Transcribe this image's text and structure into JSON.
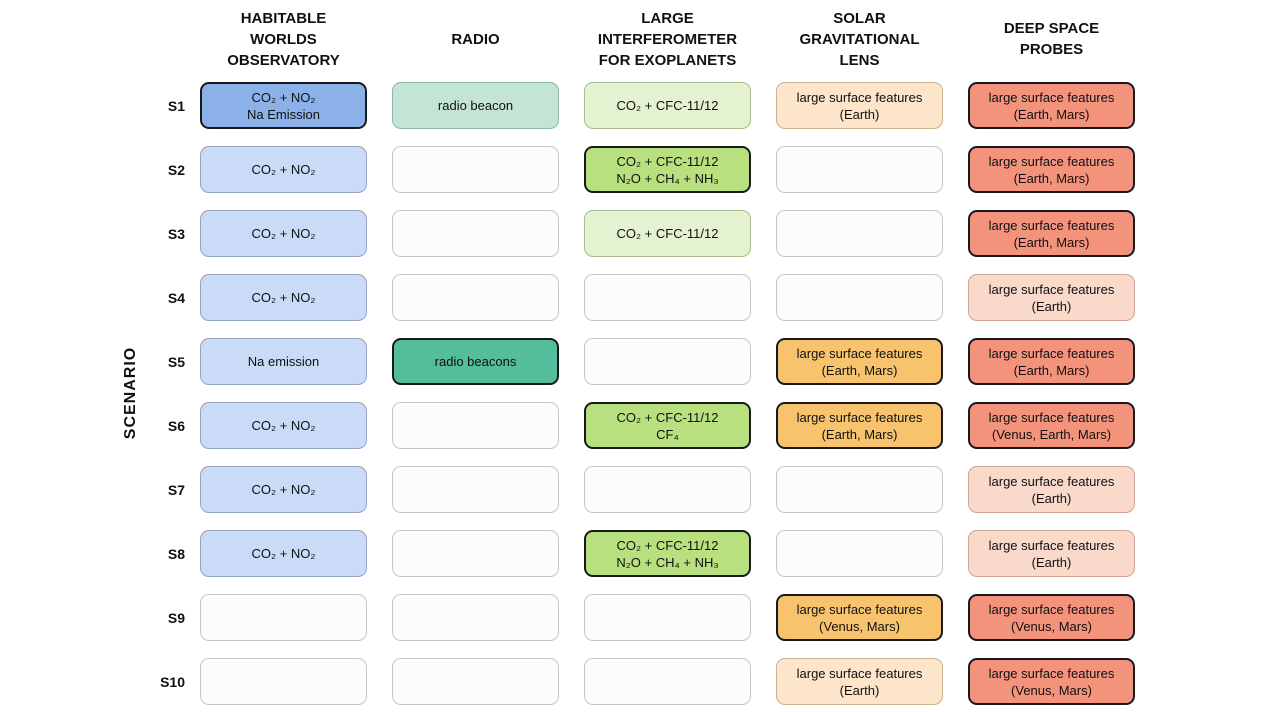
{
  "figure": {
    "axis_label": "SCENARIO",
    "background": "#ffffff",
    "text_color": "#111111"
  },
  "columns": [
    {
      "id": "hwo",
      "label": "HABITABLE WORLDS OBSERVATORY",
      "lines": [
        "HABITABLE",
        "WORLDS",
        "OBSERVATORY"
      ]
    },
    {
      "id": "radio",
      "label": "RADIO",
      "lines": [
        "RADIO"
      ]
    },
    {
      "id": "life",
      "label": "LARGE INTERFEROMETER FOR EXOPLANETS",
      "lines": [
        "LARGE",
        "INTERFEROMETER",
        "FOR EXOPLANETS"
      ]
    },
    {
      "id": "sgl",
      "label": "SOLAR GRAVITATIONAL LENS",
      "lines": [
        "SOLAR",
        "GRAVITATIONAL",
        "LENS"
      ]
    },
    {
      "id": "dsp",
      "label": "DEEP SPACE PROBES",
      "lines": [
        "DEEP SPACE",
        "PROBES"
      ]
    }
  ],
  "cell_styles": {
    "empty": {
      "bg": "#fcfcfc",
      "border": "#c6c6c6",
      "borderWidth": 1
    },
    "blue-strong": {
      "bg": "#8cb1e9",
      "border": "#18181f",
      "borderWidth": 2
    },
    "blue-light": {
      "bg": "#c9dbf7",
      "border": "#93a4c2",
      "borderWidth": 1.5
    },
    "teal-light": {
      "bg": "#c4e4d6",
      "border": "#8cb7a6",
      "borderWidth": 1.5
    },
    "teal-strong": {
      "bg": "#54bd9b",
      "border": "#18181f",
      "borderWidth": 2
    },
    "green-light": {
      "bg": "#e4f2d2",
      "border": "#a7bd8c",
      "borderWidth": 1.5
    },
    "green-strong": {
      "bg": "#b8e07e",
      "border": "#18181f",
      "borderWidth": 2
    },
    "peach-light": {
      "bg": "#fce5cb",
      "border": "#ccb18c",
      "borderWidth": 1.5
    },
    "orange-strong": {
      "bg": "#f8c36d",
      "border": "#18181f",
      "borderWidth": 2
    },
    "pink-light": {
      "bg": "#f9d9ca",
      "border": "#d2a495",
      "borderWidth": 1.5
    },
    "salmon-strong": {
      "bg": "#f4937b",
      "border": "#18181f",
      "borderWidth": 2
    }
  },
  "rows": [
    {
      "label": "S1",
      "cells": [
        {
          "style": "blue-strong",
          "lines": [
            "CO₂ + NO₂",
            "Na Emission"
          ]
        },
        {
          "style": "teal-light",
          "lines": [
            "radio beacon"
          ]
        },
        {
          "style": "green-light",
          "lines": [
            "CO₂ + CFC-11/12"
          ]
        },
        {
          "style": "peach-light",
          "lines": [
            "large surface features",
            "(Earth)"
          ]
        },
        {
          "style": "salmon-strong",
          "lines": [
            "large surface features",
            "(Earth, Mars)"
          ]
        }
      ]
    },
    {
      "label": "S2",
      "cells": [
        {
          "style": "blue-light",
          "lines": [
            "CO₂ + NO₂"
          ]
        },
        {
          "style": "empty",
          "lines": []
        },
        {
          "style": "green-strong",
          "lines": [
            "CO₂ + CFC-11/12",
            "N₂O + CH₄ + NH₃"
          ]
        },
        {
          "style": "empty",
          "lines": []
        },
        {
          "style": "salmon-strong",
          "lines": [
            "large surface features",
            "(Earth, Mars)"
          ]
        }
      ]
    },
    {
      "label": "S3",
      "cells": [
        {
          "style": "blue-light",
          "lines": [
            "CO₂ + NO₂"
          ]
        },
        {
          "style": "empty",
          "lines": []
        },
        {
          "style": "green-light",
          "lines": [
            "CO₂ + CFC-11/12"
          ]
        },
        {
          "style": "empty",
          "lines": []
        },
        {
          "style": "salmon-strong",
          "lines": [
            "large surface features",
            "(Earth, Mars)"
          ]
        }
      ]
    },
    {
      "label": "S4",
      "cells": [
        {
          "style": "blue-light",
          "lines": [
            "CO₂ + NO₂"
          ]
        },
        {
          "style": "empty",
          "lines": []
        },
        {
          "style": "empty",
          "lines": []
        },
        {
          "style": "empty",
          "lines": []
        },
        {
          "style": "pink-light",
          "lines": [
            "large surface features",
            "(Earth)"
          ]
        }
      ]
    },
    {
      "label": "S5",
      "cells": [
        {
          "style": "blue-light",
          "lines": [
            "Na emission"
          ]
        },
        {
          "style": "teal-strong",
          "lines": [
            "radio beacons"
          ]
        },
        {
          "style": "empty",
          "lines": []
        },
        {
          "style": "orange-strong",
          "lines": [
            "large surface features",
            "(Earth, Mars)"
          ]
        },
        {
          "style": "salmon-strong",
          "lines": [
            "large surface features",
            "(Earth, Mars)"
          ]
        }
      ]
    },
    {
      "label": "S6",
      "cells": [
        {
          "style": "blue-light",
          "lines": [
            "CO₂ + NO₂"
          ]
        },
        {
          "style": "empty",
          "lines": []
        },
        {
          "style": "green-strong",
          "lines": [
            "CO₂ + CFC-11/12",
            "CF₄"
          ]
        },
        {
          "style": "orange-strong",
          "lines": [
            "large surface features",
            "(Earth, Mars)"
          ]
        },
        {
          "style": "salmon-strong",
          "lines": [
            "large surface features",
            "(Venus, Earth, Mars)"
          ]
        }
      ]
    },
    {
      "label": "S7",
      "cells": [
        {
          "style": "blue-light",
          "lines": [
            "CO₂ + NO₂"
          ]
        },
        {
          "style": "empty",
          "lines": []
        },
        {
          "style": "empty",
          "lines": []
        },
        {
          "style": "empty",
          "lines": []
        },
        {
          "style": "pink-light",
          "lines": [
            "large surface features",
            "(Earth)"
          ]
        }
      ]
    },
    {
      "label": "S8",
      "cells": [
        {
          "style": "blue-light",
          "lines": [
            "CO₂ + NO₂"
          ]
        },
        {
          "style": "empty",
          "lines": []
        },
        {
          "style": "green-strong",
          "lines": [
            "CO₂ + CFC-11/12",
            "N₂O + CH₄ + NH₃"
          ]
        },
        {
          "style": "empty",
          "lines": []
        },
        {
          "style": "pink-light",
          "lines": [
            "large surface features",
            "(Earth)"
          ]
        }
      ]
    },
    {
      "label": "S9",
      "cells": [
        {
          "style": "empty",
          "lines": []
        },
        {
          "style": "empty",
          "lines": []
        },
        {
          "style": "empty",
          "lines": []
        },
        {
          "style": "orange-strong",
          "lines": [
            "large surface features",
            "(Venus, Mars)"
          ]
        },
        {
          "style": "salmon-strong",
          "lines": [
            "large surface features",
            "(Venus, Mars)"
          ]
        }
      ]
    },
    {
      "label": "S10",
      "cells": [
        {
          "style": "empty",
          "lines": []
        },
        {
          "style": "empty",
          "lines": []
        },
        {
          "style": "empty",
          "lines": []
        },
        {
          "style": "peach-light",
          "lines": [
            "large surface features",
            "(Earth)"
          ]
        },
        {
          "style": "salmon-strong",
          "lines": [
            "large surface features",
            "(Venus, Mars)"
          ]
        }
      ]
    }
  ]
}
